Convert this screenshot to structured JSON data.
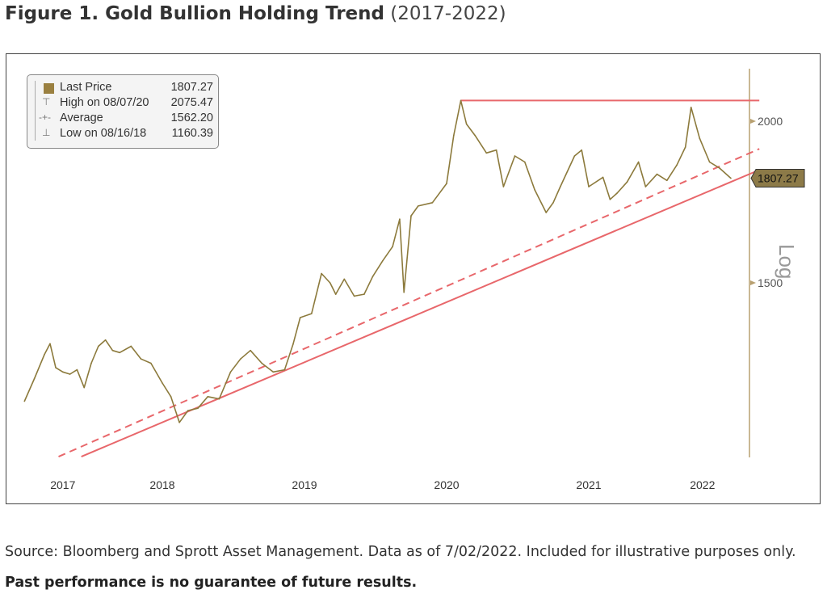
{
  "title": {
    "bold": "Figure 1. Gold Bullion Holding Trend",
    "range": "(2017-2022)"
  },
  "legend": [
    {
      "label": "Last Price",
      "value": "1807.27",
      "icon": "square-swatch-icon"
    },
    {
      "label": "High on 08/07/20",
      "value": "2075.47",
      "icon": "high-marker-icon"
    },
    {
      "label": "Average",
      "value": "1562.20",
      "icon": "average-marker-icon"
    },
    {
      "label": "Low on 08/16/18",
      "value": "1160.39",
      "icon": "low-marker-icon"
    }
  ],
  "caption": {
    "text": "Source: Bloomberg and Sprott Asset Management. Data as of 7/02/2022. Included for illustrative purposes only. ",
    "bold": "Past performance is no guarantee of future results."
  },
  "chart_data": {
    "type": "line",
    "title": "Figure 1. Gold Bullion Holding Trend (2017-2022)",
    "yscale": "log",
    "ylabel": "Log",
    "yticks": [
      1500,
      2000
    ],
    "ylim": [
      1050,
      2150
    ],
    "xlim": [
      2017.53,
      2022.5
    ],
    "xticks": [
      {
        "label": "2017",
        "x": 2017.8
      },
      {
        "label": "2018",
        "x": 2018.5
      },
      {
        "label": "2019",
        "x": 2019.5
      },
      {
        "label": "2020",
        "x": 2020.5
      },
      {
        "label": "2021",
        "x": 2021.5
      },
      {
        "label": "2022",
        "x": 2022.3
      }
    ],
    "last_price_label": "1807.27",
    "colors": {
      "price": "#8c7a3c",
      "trend": "#e8676b",
      "axis": "#b8a070",
      "badge": "#8c7a48"
    },
    "series": [
      {
        "name": "Gold Price",
        "x": [
          2017.53,
          2017.6,
          2017.67,
          2017.71,
          2017.75,
          2017.8,
          2017.85,
          2017.9,
          2017.95,
          2018.0,
          2018.05,
          2018.1,
          2018.15,
          2018.2,
          2018.28,
          2018.35,
          2018.42,
          2018.5,
          2018.56,
          2018.62,
          2018.68,
          2018.75,
          2018.82,
          2018.9,
          2018.98,
          2019.05,
          2019.12,
          2019.2,
          2019.28,
          2019.36,
          2019.42,
          2019.47,
          2019.55,
          2019.62,
          2019.68,
          2019.72,
          2019.78,
          2019.85,
          2019.92,
          2019.98,
          2020.05,
          2020.12,
          2020.17,
          2020.2,
          2020.25,
          2020.3,
          2020.4,
          2020.5,
          2020.55,
          2020.6,
          2020.64,
          2020.7,
          2020.78,
          2020.85,
          2020.9,
          2020.98,
          2021.05,
          2021.12,
          2021.2,
          2021.25,
          2021.3,
          2021.4,
          2021.45,
          2021.5,
          2021.6,
          2021.65,
          2021.7,
          2021.77,
          2021.85,
          2021.9,
          2021.98,
          2022.05,
          2022.12,
          2022.18,
          2022.22,
          2022.28,
          2022.35,
          2022.42,
          2022.5
        ],
        "y": [
          1215,
          1265,
          1320,
          1346,
          1290,
          1280,
          1275,
          1285,
          1245,
          1300,
          1340,
          1355,
          1330,
          1325,
          1340,
          1310,
          1300,
          1255,
          1225,
          1170,
          1195,
          1200,
          1225,
          1220,
          1280,
          1310,
          1330,
          1300,
          1280,
          1285,
          1345,
          1410,
          1420,
          1525,
          1500,
          1470,
          1510,
          1465,
          1470,
          1517,
          1560,
          1600,
          1680,
          1475,
          1690,
          1720,
          1730,
          1790,
          1950,
          2075,
          1990,
          1950,
          1890,
          1900,
          1780,
          1880,
          1860,
          1770,
          1700,
          1730,
          1780,
          1880,
          1900,
          1780,
          1810,
          1740,
          1760,
          1795,
          1860,
          1780,
          1820,
          1800,
          1850,
          1910,
          2050,
          1940,
          1860,
          1840,
          1807
        ]
      }
    ],
    "trendlines": [
      {
        "name": "Resistance (high)",
        "style": "solid",
        "x": [
          2020.6,
          2022.7
        ],
        "y": [
          2075,
          2075
        ]
      },
      {
        "name": "Support",
        "style": "solid",
        "x": [
          2017.93,
          2022.7
        ],
        "y": [
          1101,
          1834
        ]
      },
      {
        "name": "Support channel",
        "style": "dashed",
        "x": [
          2017.77,
          2022.7
        ],
        "y": [
          1101,
          1904
        ]
      }
    ]
  }
}
